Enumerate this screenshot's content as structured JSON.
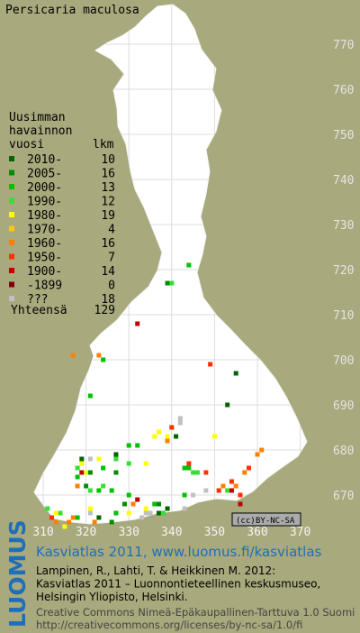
{
  "title": "Persicaria maculosa",
  "legend": {
    "heading": [
      "Uusimman",
      "havainnon",
      "vuosi"
    ],
    "count_heading": "lkm",
    "rows": [
      {
        "label": "2010-",
        "count": 10,
        "color": "#006400"
      },
      {
        "label": "2005-",
        "count": 16,
        "color": "#008c00"
      },
      {
        "label": "2000-",
        "count": 13,
        "color": "#00c000"
      },
      {
        "label": "1990-",
        "count": 12,
        "color": "#33e033"
      },
      {
        "label": "1980-",
        "count": 19,
        "color": "#ffff00"
      },
      {
        "label": "1970-",
        "count": 4,
        "color": "#ffc800"
      },
      {
        "label": "1960-",
        "count": 16,
        "color": "#ff8000"
      },
      {
        "label": "1950-",
        "count": 7,
        "color": "#ff3000"
      },
      {
        "label": "1900-",
        "count": 14,
        "color": "#c00000"
      },
      {
        "label": "-1899",
        "count": 0,
        "color": "#800000"
      },
      {
        "label": "???",
        "count": 18,
        "color": "#c0c0c0"
      }
    ],
    "total_label": "Yhteensä",
    "total": 129
  },
  "map": {
    "xticks": [
      310,
      320,
      330,
      340,
      350,
      360,
      370
    ],
    "yticks": [
      670,
      680,
      690,
      700,
      710,
      720,
      730,
      740,
      750,
      760,
      770
    ],
    "points": [
      [
        344,
        721,
        2
      ],
      [
        339,
        717,
        1
      ],
      [
        340,
        717,
        3
      ],
      [
        332,
        708,
        8
      ],
      [
        317,
        701,
        6
      ],
      [
        323,
        701,
        6
      ],
      [
        324,
        700,
        2
      ],
      [
        349,
        699,
        7
      ],
      [
        355,
        697,
        0
      ],
      [
        321,
        692,
        2
      ],
      [
        353,
        690,
        0
      ],
      [
        342,
        687,
        10
      ],
      [
        342,
        686,
        10
      ],
      [
        340,
        685,
        7
      ],
      [
        339,
        683,
        4
      ],
      [
        341,
        683,
        0
      ],
      [
        336,
        683,
        4
      ],
      [
        337,
        684,
        4
      ],
      [
        339,
        682,
        6
      ],
      [
        332,
        681,
        2
      ],
      [
        330,
        681,
        2
      ],
      [
        350,
        683,
        4
      ],
      [
        361,
        680,
        6
      ],
      [
        360,
        679,
        6
      ],
      [
        358,
        676,
        7
      ],
      [
        357,
        675,
        6
      ],
      [
        348,
        675,
        7
      ],
      [
        345,
        675,
        3
      ],
      [
        343,
        676,
        2
      ],
      [
        334,
        677,
        4
      ],
      [
        330,
        677,
        3
      ],
      [
        327,
        679,
        0
      ],
      [
        327,
        678,
        3
      ],
      [
        324,
        676,
        2
      ],
      [
        323,
        678,
        4
      ],
      [
        319,
        678,
        0
      ],
      [
        319,
        677,
        4
      ],
      [
        318,
        676,
        3
      ],
      [
        319,
        675,
        8
      ],
      [
        318,
        674,
        2
      ],
      [
        320,
        675,
        4
      ],
      [
        321,
        678,
        10
      ],
      [
        321,
        675,
        1
      ],
      [
        318,
        672,
        6
      ],
      [
        320,
        672,
        1
      ],
      [
        321,
        671,
        3
      ],
      [
        323,
        671,
        2
      ],
      [
        324,
        672,
        3
      ],
      [
        326,
        671,
        2
      ],
      [
        327,
        675,
        1
      ],
      [
        330,
        670,
        2
      ],
      [
        329,
        668,
        1
      ],
      [
        331,
        668,
        6
      ],
      [
        332,
        669,
        8
      ],
      [
        334,
        667,
        4
      ],
      [
        334,
        666,
        10
      ],
      [
        336,
        668,
        2
      ],
      [
        337,
        668,
        1
      ],
      [
        337,
        666,
        0
      ],
      [
        338,
        666,
        3
      ],
      [
        339,
        667,
        0
      ],
      [
        335,
        666,
        10
      ],
      [
        333,
        665,
        10
      ],
      [
        330,
        666,
        4
      ],
      [
        327,
        666,
        2
      ],
      [
        326,
        664,
        1
      ],
      [
        323,
        665,
        0
      ],
      [
        322,
        664,
        6
      ],
      [
        321,
        666,
        10
      ],
      [
        321,
        667,
        4
      ],
      [
        318,
        665,
        2
      ],
      [
        317,
        665,
        6
      ],
      [
        316,
        664,
        6
      ],
      [
        314,
        666,
        3
      ],
      [
        313,
        666,
        4
      ],
      [
        312,
        665,
        7
      ],
      [
        311,
        667,
        3
      ],
      [
        313,
        664,
        6
      ],
      [
        315,
        663,
        4
      ],
      [
        343,
        667,
        10
      ],
      [
        343,
        670,
        2
      ],
      [
        345,
        670,
        10
      ],
      [
        348,
        671,
        10
      ],
      [
        351,
        671,
        7
      ],
      [
        352,
        672,
        6
      ],
      [
        353,
        671,
        3
      ],
      [
        354,
        671,
        8
      ],
      [
        354,
        673,
        7
      ],
      [
        355,
        672,
        6
      ],
      [
        356,
        670,
        7
      ],
      [
        356,
        668,
        8
      ],
      [
        344,
        677,
        7
      ],
      [
        344,
        676,
        2
      ],
      [
        346,
        675,
        3
      ]
    ]
  },
  "license_badge": "BY-NC-SA",
  "footer": {
    "logo": "LUOMUS",
    "link": "Kasviatlas 2011, www.luomus.fi/kasviatlas",
    "citation": [
      "Lampinen, R., Lahti, T. & Heikkinen M. 2012:",
      "Kasviatlas 2011 – Luonnontieteellinen keskusmuseo,",
      "Helsingin Yliopisto, Helsinki."
    ],
    "license": [
      "Creative Commons Nimeä-Epäkaupallinen-Tarttuva 1.0 Suomi",
      "http://creativecommons.org/licenses/by-nc-sa/1.0/fi"
    ]
  }
}
